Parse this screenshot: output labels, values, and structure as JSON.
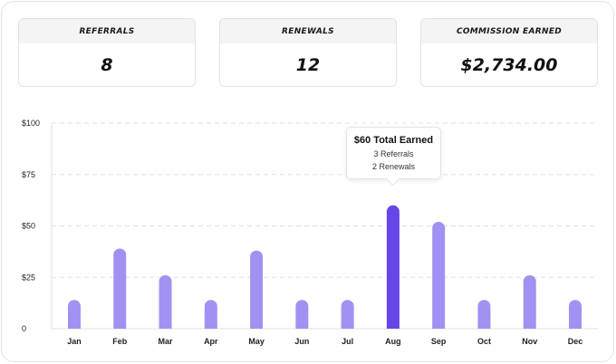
{
  "stats": [
    {
      "label": "REFERRALS",
      "value": "8"
    },
    {
      "label": "RENEWALS",
      "value": "12"
    },
    {
      "label": "COMMISSION EARNED",
      "value": "$2,734.00"
    }
  ],
  "tooltip": {
    "title": "$60 Total Earned",
    "line1": "3 Referrals",
    "line2": "2 Renewals"
  },
  "colors": {
    "bar": "#a291f2",
    "bar_active": "#6646e6",
    "grid": "#e2e2e6"
  },
  "chart_data": {
    "type": "bar",
    "categories": [
      "Jan",
      "Feb",
      "Mar",
      "Apr",
      "May",
      "Jun",
      "Jul",
      "Aug",
      "Sep",
      "Oct",
      "Nov",
      "Dec"
    ],
    "values": [
      14,
      39,
      26,
      14,
      38,
      14,
      14,
      60,
      52,
      14,
      26,
      14
    ],
    "highlighted": "Aug",
    "yticks": [
      0,
      25,
      50,
      75,
      100
    ],
    "ytick_labels": [
      "0",
      "$25",
      "$50",
      "$75",
      "$100"
    ],
    "ylim": [
      0,
      100
    ],
    "grid": true
  }
}
